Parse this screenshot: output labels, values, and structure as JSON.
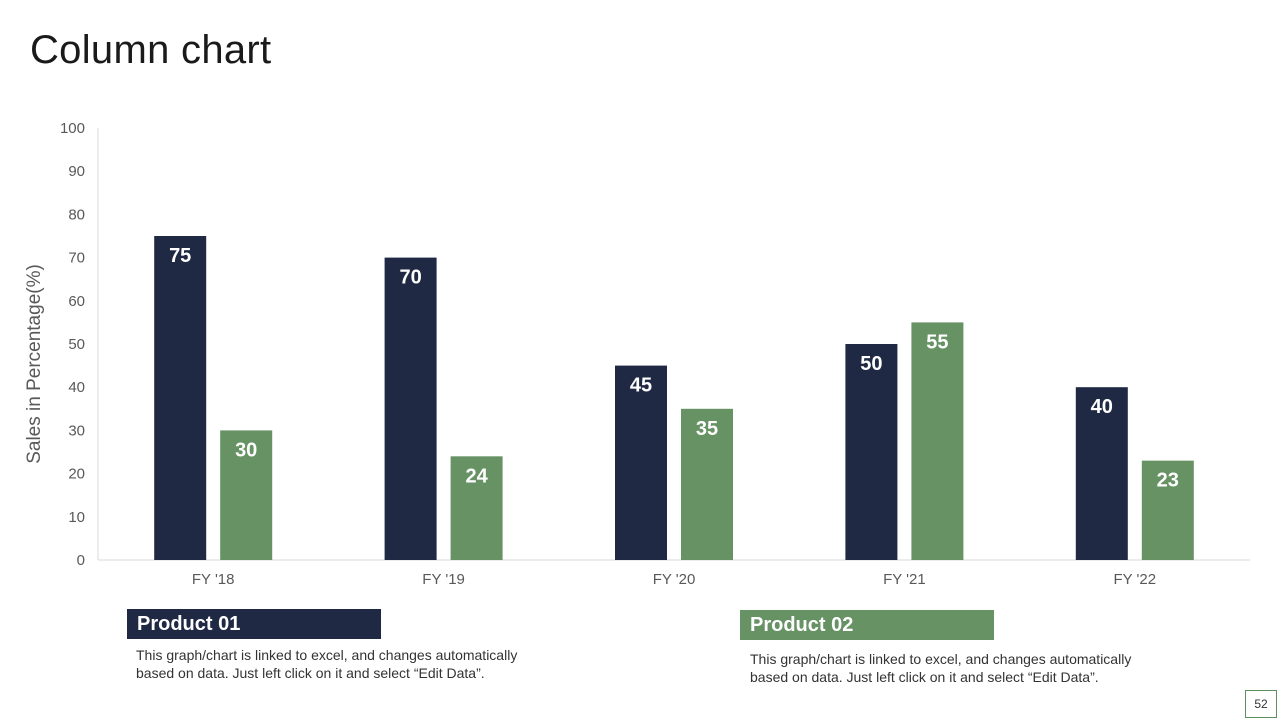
{
  "slide": {
    "title": "Column chart",
    "page_number": "52"
  },
  "legend": {
    "items": [
      {
        "label": "Product 01",
        "color": "#1f2944",
        "description": "This graph/chart is linked to excel, and changes automatically based on data. Just left click on it and select “Edit Data”."
      },
      {
        "label": "Product 02",
        "color": "#669264",
        "description": "This graph/chart is linked to excel, and changes automatically based on data. Just left click on it and select “Edit Data”."
      }
    ]
  },
  "chart_data": {
    "type": "bar",
    "title": "Column chart",
    "xlabel": "",
    "ylabel": "Sales in Percentage(%)",
    "categories": [
      "FY '18",
      "FY '19",
      "FY '20",
      "FY '21",
      "FY '22"
    ],
    "series": [
      {
        "name": "Product 01",
        "color": "#1f2944",
        "values": [
          75,
          70,
          45,
          50,
          40
        ]
      },
      {
        "name": "Product 02",
        "color": "#669264",
        "values": [
          30,
          24,
          35,
          55,
          23
        ]
      }
    ],
    "ylim": [
      0,
      100
    ],
    "yticks": [
      "0",
      "10",
      "20",
      "30",
      "40",
      "50",
      "60",
      "70",
      "80",
      "90",
      "100"
    ],
    "grid": false,
    "data_labels": true,
    "legend_position": "bottom"
  }
}
